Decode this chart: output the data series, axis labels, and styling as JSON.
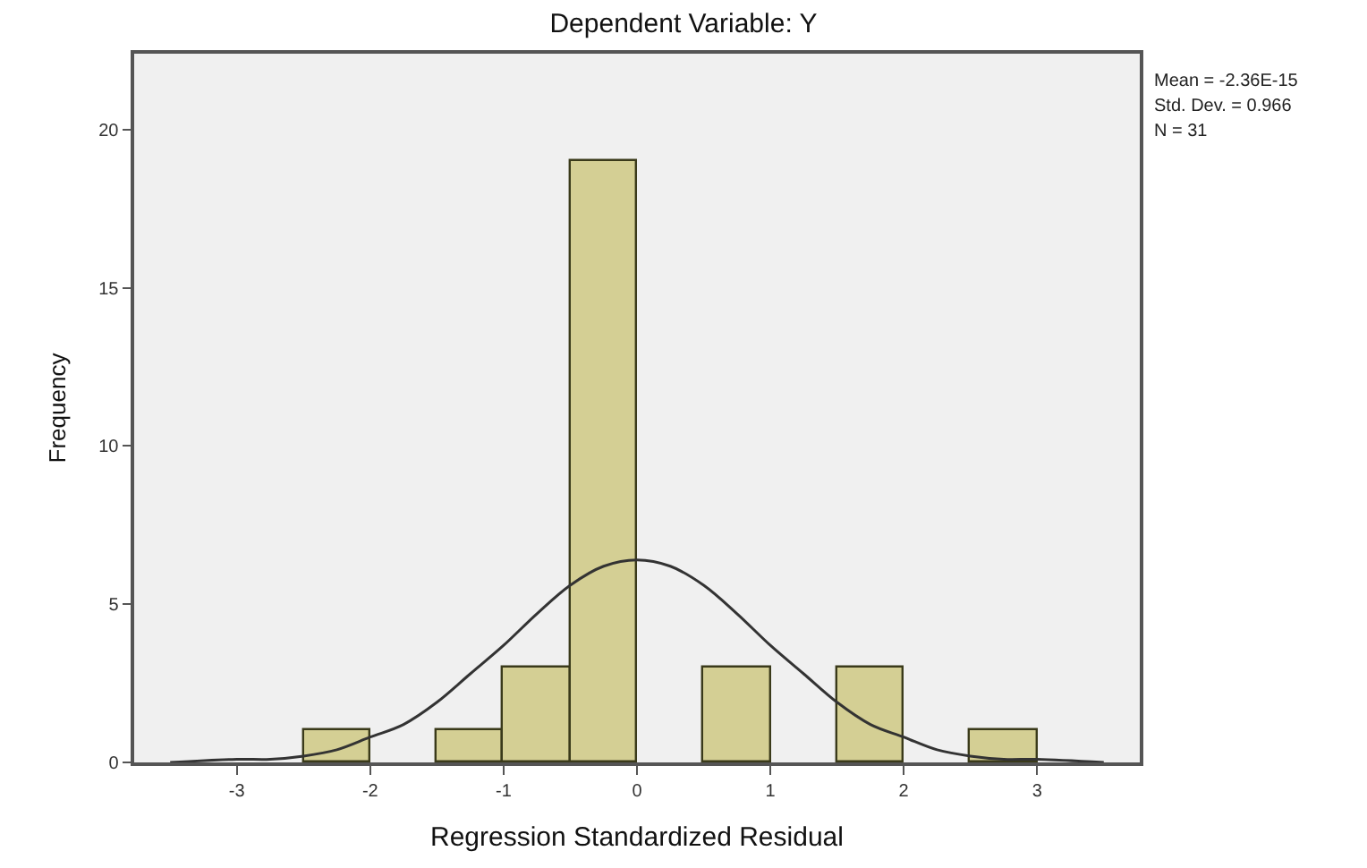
{
  "chart_data": {
    "type": "histogram",
    "title": "Dependent Variable: Y",
    "xlabel": "Regression Standardized Residual",
    "ylabel": "Frequency",
    "bins": [
      -2.5,
      -2.0,
      -1.5,
      -1.0,
      -0.5,
      0.0,
      0.5,
      1.0,
      1.5,
      2.0,
      2.5,
      3.0
    ],
    "values": [
      1,
      0,
      1,
      3,
      19,
      0,
      3,
      0,
      3,
      0,
      1
    ],
    "color": "#d4cf94",
    "series": [
      {
        "type": "line",
        "color": "#333333",
        "x": [
          -3.5,
          -3.0,
          -2.75,
          -2.5,
          -2.25,
          -2.0,
          -1.75,
          -1.5,
          -1.25,
          -1.0,
          -0.75,
          -0.5,
          -0.25,
          0.0,
          0.25,
          0.5,
          0.75,
          1.0,
          1.25,
          1.5,
          1.75,
          2.0,
          2.25,
          2.5,
          2.75,
          3.0,
          3.5
        ],
        "values": [
          0.0,
          0.1,
          0.1,
          0.2,
          0.4,
          0.8,
          1.2,
          1.9,
          2.8,
          3.7,
          4.7,
          5.6,
          6.2,
          6.4,
          6.2,
          5.6,
          4.7,
          3.7,
          2.8,
          1.9,
          1.2,
          0.8,
          0.4,
          0.2,
          0.1,
          0.1,
          0.0
        ]
      }
    ],
    "xlim": [
      -3.77,
      3.77
    ],
    "xticks": [
      -3,
      -2,
      -1,
      0,
      1,
      2,
      3
    ],
    "ylim": [
      0,
      22.4
    ],
    "yticks": [
      0,
      5,
      10,
      15,
      20
    ],
    "grid": false,
    "annotations": [
      "Mean = -2.36E-15",
      "Std. Dev. = 0.966",
      "N = 31"
    ]
  }
}
